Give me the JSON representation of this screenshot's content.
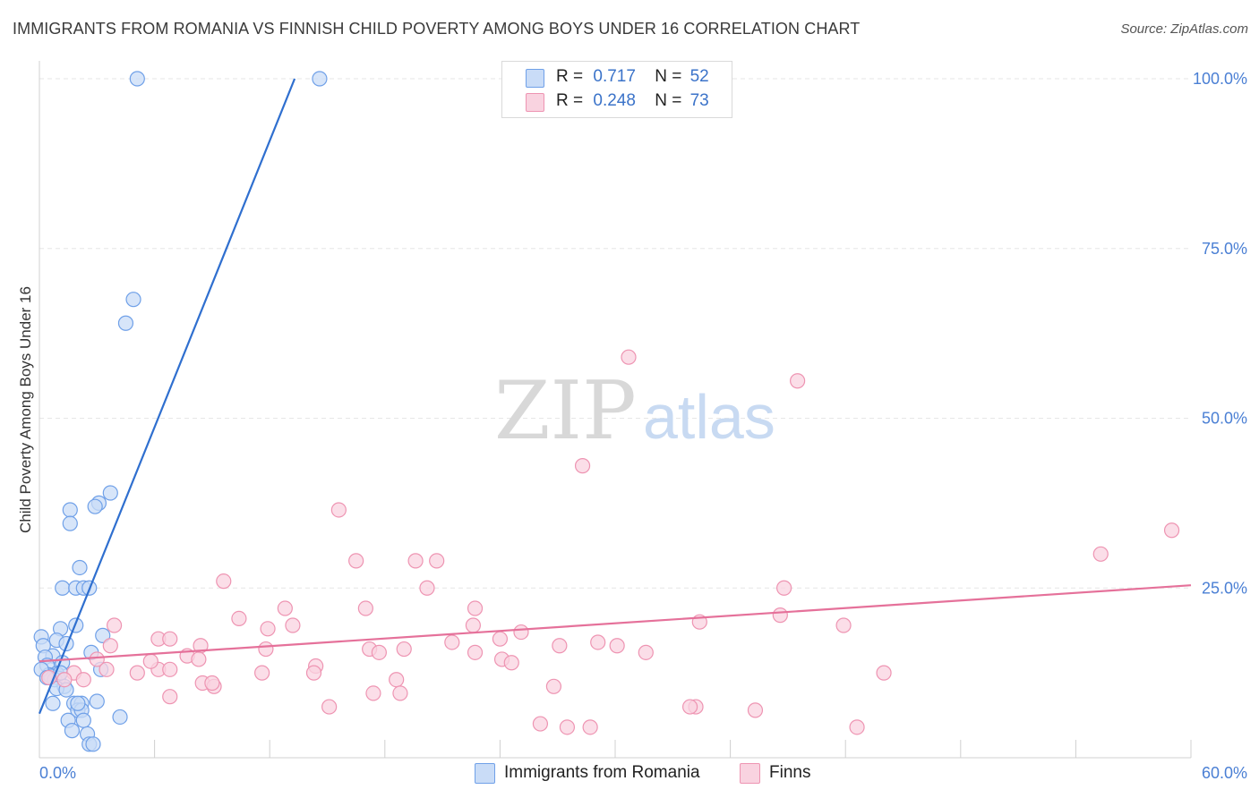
{
  "chart_data": {
    "type": "scatter",
    "title": "IMMIGRANTS FROM ROMANIA VS FINNISH CHILD POVERTY AMONG BOYS UNDER 16 CORRELATION CHART",
    "source": "Source: ZipAtlas.com",
    "xlabel": "",
    "ylabel": "Child Poverty Among Boys Under 16",
    "xlim": [
      0,
      60
    ],
    "ylim": [
      0,
      100
    ],
    "x_tick_labels": [
      "0.0%",
      "60.0%"
    ],
    "y_ticks": [
      25,
      50,
      75,
      100
    ],
    "y_tick_labels": [
      "25.0%",
      "50.0%",
      "75.0%",
      "100.0%"
    ],
    "grid": true,
    "watermark": {
      "zip": "ZIP",
      "atlas": "atlas"
    },
    "legend": {
      "r_label": "R =",
      "n_label": "N =",
      "entries": [
        {
          "r": "0.717",
          "n": "52"
        },
        {
          "r": "0.248",
          "n": "73"
        }
      ]
    },
    "series": [
      {
        "name": "Immigrants from Romania",
        "color": "#6fa0e8",
        "fill": "#c9dcf7",
        "line_color": "#2f6fcf",
        "trend": {
          "x": [
            0.0,
            13.3
          ],
          "y": [
            6.5,
            100
          ]
        },
        "points": [
          [
            5.1,
            100
          ],
          [
            14.6,
            100
          ],
          [
            4.9,
            67.5
          ],
          [
            4.5,
            64
          ],
          [
            3.7,
            39
          ],
          [
            3.1,
            37.5
          ],
          [
            2.9,
            37
          ],
          [
            1.6,
            36.5
          ],
          [
            1.6,
            34.5
          ],
          [
            2.1,
            28
          ],
          [
            1.2,
            25
          ],
          [
            1.9,
            25
          ],
          [
            2.3,
            25
          ],
          [
            2.6,
            25
          ],
          [
            1.9,
            19.5
          ],
          [
            1.1,
            19
          ],
          [
            0.1,
            17.8
          ],
          [
            0.9,
            17.3
          ],
          [
            3.3,
            18
          ],
          [
            1.4,
            16.8
          ],
          [
            0.2,
            16.5
          ],
          [
            2.7,
            15.5
          ],
          [
            0.7,
            15
          ],
          [
            0.3,
            14.8
          ],
          [
            1.2,
            14
          ],
          [
            0.4,
            13.6
          ],
          [
            0.9,
            12.4
          ],
          [
            0.5,
            12.2
          ],
          [
            0.6,
            12
          ],
          [
            1.0,
            11.7
          ],
          [
            0.8,
            11.5
          ],
          [
            1.3,
            10.5
          ],
          [
            0.9,
            10.2
          ],
          [
            1.4,
            10
          ],
          [
            0.7,
            8
          ],
          [
            1.8,
            8
          ],
          [
            2.2,
            8
          ],
          [
            3.0,
            8.3
          ],
          [
            2.0,
            7
          ],
          [
            2.2,
            7
          ],
          [
            4.2,
            6
          ],
          [
            1.5,
            5.5
          ],
          [
            2.3,
            5.5
          ],
          [
            1.7,
            4
          ],
          [
            2.5,
            3.5
          ],
          [
            2.6,
            2
          ],
          [
            2.8,
            2
          ],
          [
            0.1,
            13
          ],
          [
            0.4,
            11.8
          ],
          [
            1.1,
            12.5
          ],
          [
            2.0,
            8
          ],
          [
            3.2,
            13
          ]
        ]
      },
      {
        "name": "Finns",
        "color": "#ee94b2",
        "fill": "#f9d3e0",
        "line_color": "#e5719a",
        "trend": {
          "x": [
            0.0,
            60.0
          ],
          "y": [
            14.2,
            25.4
          ]
        },
        "points": [
          [
            30.7,
            59
          ],
          [
            39.5,
            55.5
          ],
          [
            28.3,
            43
          ],
          [
            15.6,
            36.5
          ],
          [
            59.0,
            33.5
          ],
          [
            55.3,
            30
          ],
          [
            16.5,
            29
          ],
          [
            19.6,
            29
          ],
          [
            20.7,
            29
          ],
          [
            9.6,
            26
          ],
          [
            20.2,
            25
          ],
          [
            38.8,
            25
          ],
          [
            12.8,
            22
          ],
          [
            22.7,
            22
          ],
          [
            17.0,
            22
          ],
          [
            3.9,
            19.5
          ],
          [
            10.4,
            20.5
          ],
          [
            34.4,
            20
          ],
          [
            38.6,
            21
          ],
          [
            41.9,
            19.5
          ],
          [
            13.2,
            19.5
          ],
          [
            11.9,
            19
          ],
          [
            22.6,
            19.5
          ],
          [
            25.1,
            18.5
          ],
          [
            6.2,
            17.5
          ],
          [
            6.8,
            17.5
          ],
          [
            21.5,
            17
          ],
          [
            24.0,
            17.5
          ],
          [
            29.1,
            17
          ],
          [
            30.1,
            16.5
          ],
          [
            27.1,
            16.5
          ],
          [
            3.7,
            16.5
          ],
          [
            8.4,
            16.5
          ],
          [
            11.8,
            16
          ],
          [
            17.2,
            16
          ],
          [
            17.7,
            15.5
          ],
          [
            22.7,
            15.5
          ],
          [
            31.6,
            15.5
          ],
          [
            7.7,
            15
          ],
          [
            8.3,
            14.5
          ],
          [
            3.0,
            14.5
          ],
          [
            24.1,
            14.5
          ],
          [
            24.6,
            14
          ],
          [
            6.2,
            13
          ],
          [
            14.4,
            13.5
          ],
          [
            1.8,
            12.5
          ],
          [
            5.1,
            12.5
          ],
          [
            11.6,
            12.5
          ],
          [
            14.3,
            12.5
          ],
          [
            44.0,
            12.5
          ],
          [
            1.3,
            11.5
          ],
          [
            0.5,
            11.8
          ],
          [
            2.3,
            11.5
          ],
          [
            18.6,
            11.5
          ],
          [
            8.5,
            11
          ],
          [
            9.1,
            10.5
          ],
          [
            26.8,
            10.5
          ],
          [
            17.4,
            9.5
          ],
          [
            18.8,
            9.5
          ],
          [
            6.8,
            9
          ],
          [
            34.2,
            7.5
          ],
          [
            33.9,
            7.5
          ],
          [
            15.1,
            7.5
          ],
          [
            37.3,
            7
          ],
          [
            26.1,
            5
          ],
          [
            27.5,
            4.5
          ],
          [
            28.7,
            4.5
          ],
          [
            42.6,
            4.5
          ],
          [
            5.8,
            14.2
          ],
          [
            19.0,
            16
          ],
          [
            6.8,
            13
          ],
          [
            3.5,
            13
          ],
          [
            9.0,
            11
          ]
        ]
      }
    ]
  },
  "legend_bottom": {
    "items": [
      {
        "label": "Immigrants from Romania"
      },
      {
        "label": "Finns"
      }
    ]
  }
}
